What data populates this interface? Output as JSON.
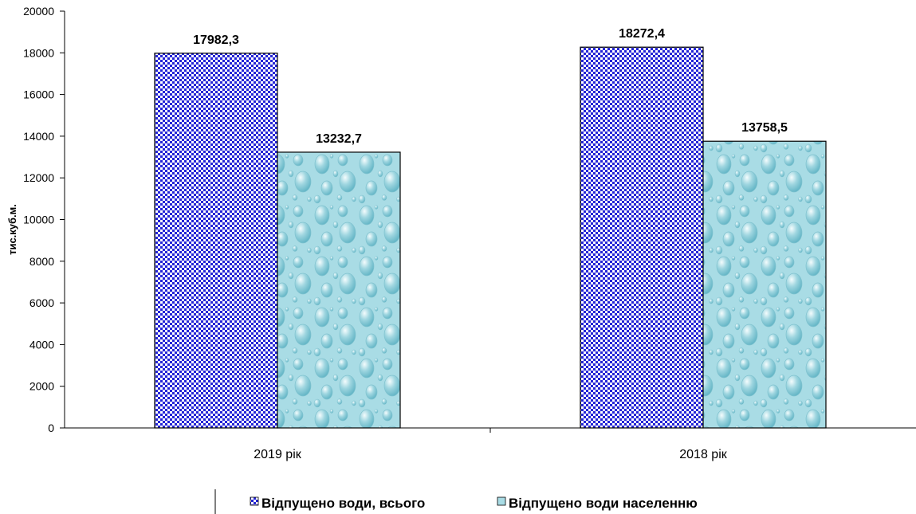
{
  "chart_data": {
    "type": "bar",
    "title": "",
    "xlabel": "",
    "ylabel": "тис.куб.м.",
    "ylim": [
      0,
      20000
    ],
    "yticks": [
      0,
      2000,
      4000,
      6000,
      8000,
      10000,
      12000,
      14000,
      16000,
      18000,
      20000
    ],
    "categories": [
      "2019 рік",
      "2018 рік"
    ],
    "series": [
      {
        "name": "Відпущено води, всього",
        "values": [
          17982.3,
          18272.4
        ],
        "data_labels": [
          "17982,3",
          "18272,4"
        ],
        "color": "#2a2ad8",
        "pattern": "checkerboard"
      },
      {
        "name": "Відпущено води населенню",
        "values": [
          13232.7,
          13758.5
        ],
        "data_labels": [
          "13232,7",
          "13758,5"
        ],
        "color": "#a8dde6",
        "pattern": "water-drops"
      }
    ],
    "grid": false,
    "legend_position": "bottom"
  }
}
